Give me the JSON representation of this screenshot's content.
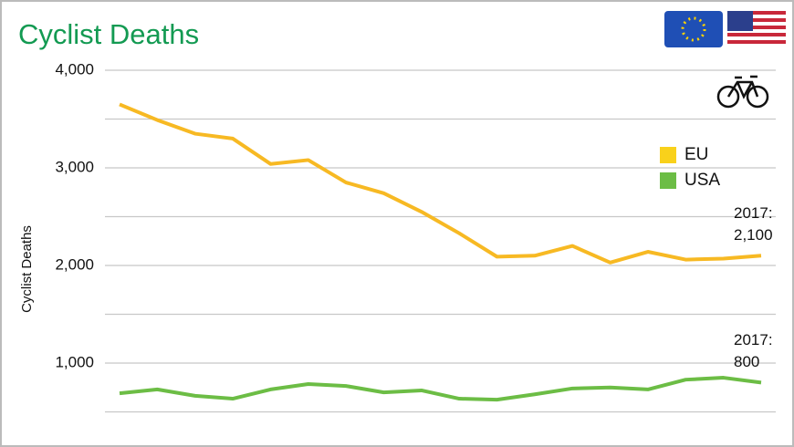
{
  "chart_data": {
    "type": "line",
    "title": "Cyclist Deaths",
    "y_label": "Cyclist Deaths",
    "categories": [
      null,
      null,
      null,
      null,
      null,
      null,
      null,
      null,
      null,
      null,
      null,
      null,
      null,
      null,
      null,
      null,
      null,
      null
    ],
    "series": [
      {
        "name": "EU",
        "color": "#f7b923",
        "values": [
          3650,
          3490,
          3350,
          3300,
          3040,
          3080,
          2850,
          2740,
          2550,
          2330,
          2090,
          2100,
          2200,
          2030,
          2140,
          2060,
          2070,
          2100
        ],
        "annotation": "2017:",
        "value_labels": [
          null,
          null,
          null,
          null,
          null,
          null,
          null,
          null,
          null,
          null,
          null,
          null,
          null,
          null,
          null,
          null,
          null,
          "2,100"
        ]
      },
      {
        "name": "USA",
        "color": "#6cbd45",
        "values": [
          690,
          730,
          665,
          635,
          730,
          785,
          765,
          700,
          720,
          635,
          625,
          680,
          740,
          750,
          730,
          830,
          850,
          800
        ],
        "annotation": "2017:",
        "value_labels": [
          null,
          null,
          null,
          null,
          null,
          null,
          null,
          null,
          null,
          null,
          null,
          null,
          null,
          null,
          null,
          null,
          null,
          "800"
        ]
      }
    ],
    "legend_colors": [
      "#f9d11b",
      "#6cbd45"
    ],
    "ylim": [
      500,
      4000
    ],
    "yticks": [
      {
        "value": 500,
        "label": null
      },
      {
        "value": 1000,
        "label": "1,000"
      },
      {
        "value": 1500,
        "label": null
      },
      {
        "value": 2000,
        "label": "2,000"
      },
      {
        "value": 2500,
        "label": null
      },
      {
        "value": 3000,
        "label": "3,000"
      },
      {
        "value": 3500,
        "label": null
      },
      {
        "value": 4000,
        "label": "4,000"
      }
    ],
    "grid": true,
    "legend": "right"
  }
}
